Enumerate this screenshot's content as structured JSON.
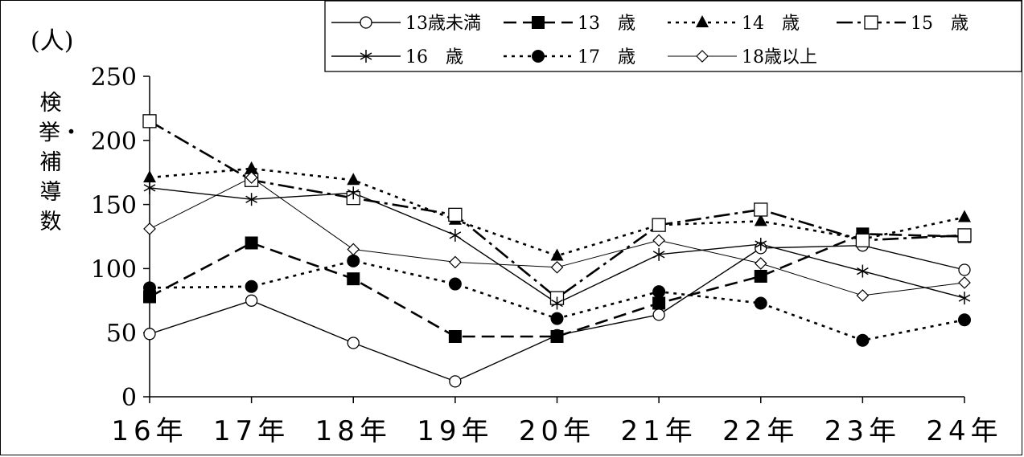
{
  "chart_data": {
    "type": "line",
    "unit_label": "(人)",
    "ylabel": "検挙・補導数",
    "categories": [
      "16年",
      "17年",
      "18年",
      "19年",
      "20年",
      "21年",
      "22年",
      "23年",
      "24年"
    ],
    "ylim": [
      0,
      250
    ],
    "yticks": [
      0,
      50,
      100,
      150,
      200,
      250
    ],
    "grid": false,
    "legend_position": "top-right",
    "series": [
      {
        "name": "13歳未満",
        "values": [
          49,
          75,
          42,
          12,
          48,
          64,
          116,
          118,
          99
        ],
        "style": "solid",
        "marker": "circle-open",
        "color": "#000000"
      },
      {
        "name": "13　歳",
        "values": [
          78,
          120,
          92,
          47,
          47,
          73,
          94,
          127,
          125
        ],
        "style": "dashed",
        "marker": "square-filled",
        "color": "#000000"
      },
      {
        "name": "14　歳",
        "values": [
          171,
          178,
          169,
          138,
          110,
          134,
          137,
          123,
          140
        ],
        "style": "dotted",
        "marker": "triangle-filled",
        "color": "#000000"
      },
      {
        "name": "15　歳",
        "values": [
          215,
          169,
          155,
          142,
          77,
          134,
          146,
          122,
          126
        ],
        "style": "dashdot",
        "marker": "square-open",
        "color": "#000000"
      },
      {
        "name": "16　歳",
        "values": [
          163,
          154,
          159,
          126,
          73,
          111,
          119,
          98,
          77
        ],
        "style": "solid",
        "marker": "star",
        "color": "#000000"
      },
      {
        "name": "17　歳",
        "values": [
          85,
          86,
          106,
          88,
          61,
          82,
          73,
          44,
          60
        ],
        "style": "dotted",
        "marker": "circle-filled",
        "color": "#000000"
      },
      {
        "name": "18歳以上",
        "values": [
          131,
          171,
          115,
          105,
          101,
          122,
          104,
          79,
          89
        ],
        "style": "solid-thin",
        "marker": "diamond-open",
        "color": "#000000"
      }
    ]
  }
}
